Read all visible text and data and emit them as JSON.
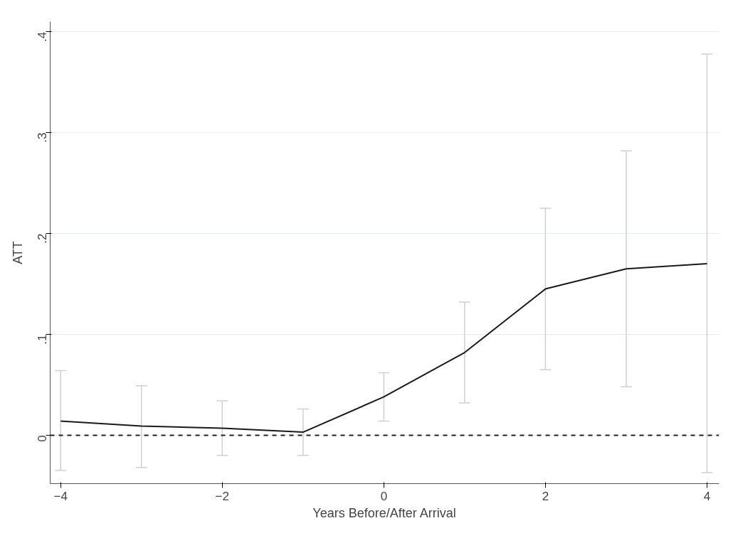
{
  "chart_data": {
    "type": "line",
    "xlabel": "Years Before/After Arrival",
    "ylabel": "ATT",
    "x": [
      -4,
      -3,
      -2,
      -1,
      0,
      1,
      2,
      3,
      4
    ],
    "series": [
      {
        "color": "#1a1a1a",
        "values": [
          0.014,
          0.009,
          0.007,
          0.003,
          0.038,
          0.082,
          0.145,
          0.165,
          0.17
        ],
        "errors": [
          [
            -0.035,
            0.064
          ],
          [
            -0.032,
            0.049
          ],
          [
            -0.02,
            0.034
          ],
          [
            -0.02,
            0.026
          ],
          [
            0.014,
            0.062
          ],
          [
            0.032,
            0.132
          ],
          [
            0.065,
            0.225
          ],
          [
            0.048,
            0.282
          ],
          [
            -0.037,
            0.378
          ]
        ]
      }
    ],
    "xlim": [
      -4.13,
      4.15
    ],
    "ylim": [
      -0.048,
      0.41
    ],
    "xticks": [
      -4,
      -2,
      0,
      2,
      4
    ],
    "yticks": [
      {
        "value": 0,
        "label": "0"
      },
      {
        "value": 0.1,
        "label": ".1"
      },
      {
        "value": 0.2,
        "label": ".2"
      },
      {
        "value": 0.3,
        "label": ".3"
      },
      {
        "value": 0.4,
        "label": ".4"
      }
    ],
    "ref_lines": [
      {
        "axis": "y",
        "value": 0,
        "label": null,
        "color": "#222222",
        "line_style": "dashed"
      }
    ],
    "grid": "y",
    "marker": "none",
    "line_style": "solid"
  }
}
